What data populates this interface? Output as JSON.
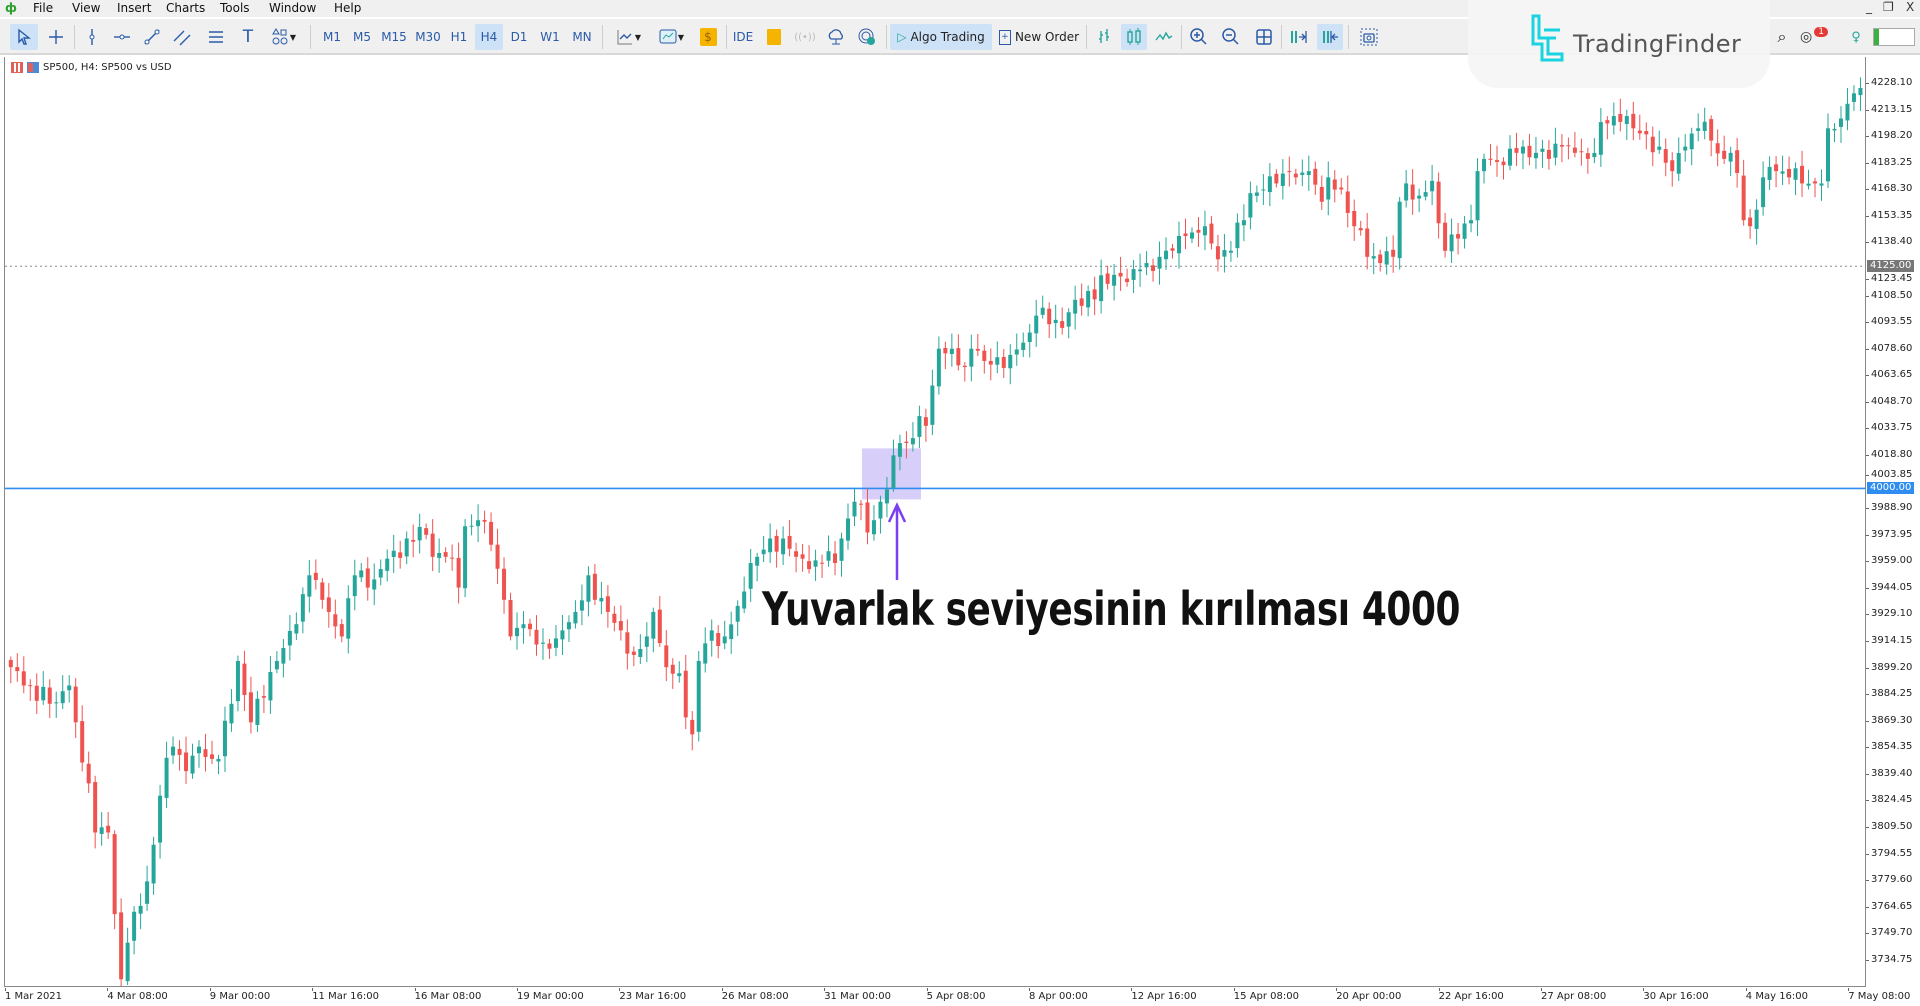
{
  "menu": {
    "items": [
      "File",
      "View",
      "Insert",
      "Charts",
      "Tools",
      "Window",
      "Help"
    ]
  },
  "window_controls": {
    "minimize": "_",
    "restore": "❐",
    "close": "X"
  },
  "toolbar": {
    "timeframes": [
      "M1",
      "M5",
      "M15",
      "M30",
      "H1",
      "H4",
      "D1",
      "W1",
      "MN"
    ],
    "active_timeframe": "H4",
    "ide_label": "IDE",
    "algo_trading_label": "Algo Trading",
    "new_order_label": "New Order",
    "notification_count": "1"
  },
  "logo": {
    "text": "TradingFinder"
  },
  "chart": {
    "header": "SP500, H4:  SP500 vs USD",
    "price_labels": [
      "4228.10",
      "4213.15",
      "4198.20",
      "4183.25",
      "4168.30",
      "4153.35",
      "4138.40",
      "4123.45",
      "4108.50",
      "4093.55",
      "4078.60",
      "4063.65",
      "4048.70",
      "4033.75",
      "4018.80",
      "4003.85",
      "3988.90",
      "3973.95",
      "3959.00",
      "3944.05",
      "3929.10",
      "3914.15",
      "3899.20",
      "3884.25",
      "3869.30",
      "3854.35",
      "3839.40",
      "3824.45",
      "3809.50",
      "3794.55",
      "3779.60",
      "3764.65",
      "3749.70",
      "3734.75"
    ],
    "time_labels": [
      "1 Mar 2021",
      "4 Mar 08:00",
      "9 Mar 00:00",
      "11 Mar 16:00",
      "16 Mar 08:00",
      "19 Mar 00:00",
      "23 Mar 16:00",
      "26 Mar 08:00",
      "31 Mar 00:00",
      "5 Apr 08:00",
      "8 Apr 00:00",
      "12 Apr 16:00",
      "15 Apr 08:00",
      "20 Apr 00:00",
      "22 Apr 16:00",
      "27 Apr 08:00",
      "30 Apr 16:00",
      "4 May 16:00",
      "7 May 08:00"
    ],
    "level_line": {
      "price": 4000.0,
      "label": "4000.00",
      "color": "#2f8cf0"
    },
    "bid_line": {
      "price": 4125.0,
      "label": "4125.00",
      "color": "#888888"
    },
    "annotation": "Yuvarlak seviyesinin kırılması 4000",
    "highlight_color": "#c9bdf7",
    "arrow_color": "#7b3ff2"
  },
  "chart_data": {
    "type": "candlestick",
    "symbol": "SP500",
    "timeframe": "H4",
    "ylim": [
      3720,
      4235
    ],
    "bull_color": "#26a69a",
    "bear_color": "#ef5350",
    "close_path": [
      [
        0,
        3899.4
      ],
      [
        2,
        3889.1
      ],
      [
        6,
        3878.8
      ],
      [
        9,
        3889.1
      ],
      [
        10,
        3868.4
      ],
      [
        12,
        3834.0
      ],
      [
        13,
        3806.4
      ],
      [
        15,
        3806.4
      ],
      [
        17,
        3723.8
      ],
      [
        18,
        3744.4
      ],
      [
        20,
        3765.1
      ],
      [
        21,
        3778.9
      ],
      [
        22,
        3799.5
      ],
      [
        23,
        3827.1
      ],
      [
        25,
        3854.7
      ],
      [
        27,
        3840.9
      ],
      [
        29,
        3854.7
      ],
      [
        31,
        3847.8
      ],
      [
        32,
        3847.8
      ],
      [
        34,
        3878.8
      ],
      [
        35,
        3902.9
      ],
      [
        37,
        3868.4
      ],
      [
        39,
        3882.2
      ],
      [
        41,
        3902.9
      ],
      [
        44,
        3923.6
      ],
      [
        46,
        3951.1
      ],
      [
        48,
        3937.3
      ],
      [
        49,
        3930.5
      ],
      [
        51,
        3916.7
      ],
      [
        53,
        3951.1
      ],
      [
        55,
        3944.2
      ],
      [
        57,
        3954.6
      ],
      [
        59,
        3964.9
      ],
      [
        61,
        3971.8
      ],
      [
        64,
        3973.9
      ],
      [
        65,
        3961.5
      ],
      [
        67,
        3961.5
      ],
      [
        69,
        3944.2
      ],
      [
        70,
        3978.7
      ],
      [
        72,
        3982.1
      ],
      [
        74,
        3968.3
      ],
      [
        76,
        3937.3
      ],
      [
        77,
        3916.7
      ],
      [
        79,
        3923.6
      ],
      [
        82,
        3913.2
      ],
      [
        83,
        3909.8
      ],
      [
        85,
        3920.1
      ],
      [
        87,
        3930.5
      ],
      [
        89,
        3951.1
      ],
      [
        90,
        3937.3
      ],
      [
        92,
        3930.5
      ],
      [
        94,
        3920.1
      ],
      [
        96,
        3906.3
      ],
      [
        98,
        3916.7
      ],
      [
        99,
        3930.5
      ],
      [
        101,
        3899.4
      ],
      [
        103,
        3896.0
      ],
      [
        105,
        3861.6
      ],
      [
        106,
        3902.9
      ],
      [
        108,
        3920.1
      ],
      [
        110,
        3916.7
      ],
      [
        112,
        3933.9
      ],
      [
        114,
        3958.0
      ],
      [
        115,
        3961.5
      ],
      [
        117,
        3971.8
      ],
      [
        119,
        3971.8
      ],
      [
        121,
        3961.5
      ],
      [
        123,
        3954.6
      ],
      [
        125,
        3958.0
      ],
      [
        127,
        3958.0
      ],
      [
        128,
        3971.8
      ],
      [
        130,
        3992.5
      ],
      [
        132,
        3975.2
      ],
      [
        133,
        3982.1
      ],
      [
        134,
        3992.5
      ],
      [
        135,
        3999.4
      ],
      [
        136,
        4018.6
      ],
      [
        137,
        4025.5
      ],
      [
        138,
        4025.5
      ],
      [
        140,
        4040.7
      ],
      [
        141,
        4035.2
      ],
      [
        142,
        4057.9
      ],
      [
        143,
        4078.6
      ],
      [
        145,
        4078.6
      ],
      [
        147,
        4068.3
      ],
      [
        148,
        4078.6
      ],
      [
        150,
        4071.7
      ],
      [
        152,
        4073.8
      ],
      [
        154,
        4075.1
      ],
      [
        156,
        4082.0
      ],
      [
        158,
        4097.2
      ],
      [
        160,
        4092.4
      ],
      [
        162,
        4090.3
      ],
      [
        164,
        4106.1
      ],
      [
        165,
        4102.7
      ],
      [
        168,
        4119.9
      ],
      [
        169,
        4115.1
      ],
      [
        171,
        4119.2
      ],
      [
        173,
        4123.4
      ],
      [
        175,
        4126.8
      ],
      [
        177,
        4130.3
      ],
      [
        179,
        4133.7
      ],
      [
        181,
        4142.0
      ],
      [
        182,
        4144.0
      ],
      [
        184,
        4147.5
      ],
      [
        186,
        4128.9
      ],
      [
        188,
        4133.7
      ],
      [
        190,
        4150.9
      ],
      [
        191,
        4166.1
      ],
      [
        193,
        4168.2
      ],
      [
        195,
        4171.6
      ],
      [
        197,
        4178.5
      ],
      [
        198,
        4175.0
      ],
      [
        200,
        4178.5
      ],
      [
        202,
        4161.3
      ],
      [
        203,
        4175.0
      ],
      [
        205,
        4168.2
      ],
      [
        207,
        4147.5
      ],
      [
        209,
        4130.3
      ],
      [
        211,
        4126.8
      ],
      [
        213,
        4130.3
      ],
      [
        214,
        4161.3
      ],
      [
        215,
        4171.6
      ],
      [
        217,
        4164.7
      ],
      [
        219,
        4173.0
      ],
      [
        221,
        4133.7
      ],
      [
        223,
        4140.6
      ],
      [
        225,
        4150.9
      ],
      [
        226,
        4178.5
      ],
      [
        227,
        4185.4
      ],
      [
        230,
        4181.9
      ],
      [
        232,
        4188.8
      ],
      [
        233,
        4192.3
      ],
      [
        235,
        4188.8
      ],
      [
        237,
        4185.4
      ],
      [
        239,
        4192.3
      ],
      [
        241,
        4188.8
      ],
      [
        243,
        4185.4
      ],
      [
        245,
        4206.1
      ],
      [
        247,
        4209.5
      ],
      [
        249,
        4209.5
      ],
      [
        250,
        4202.6
      ],
      [
        252,
        4199.2
      ],
      [
        254,
        4192.3
      ],
      [
        256,
        4178.5
      ],
      [
        258,
        4192.3
      ],
      [
        260,
        4202.6
      ],
      [
        262,
        4195.7
      ],
      [
        264,
        4185.4
      ],
      [
        265,
        4188.8
      ],
      [
        267,
        4150.9
      ],
      [
        268,
        4147.5
      ],
      [
        270,
        4175.0
      ],
      [
        272,
        4178.5
      ],
      [
        274,
        4175.0
      ],
      [
        276,
        4171.6
      ],
      [
        278,
        4171.6
      ],
      [
        279,
        4171.6
      ],
      [
        280,
        4202.6
      ],
      [
        282,
        4208.1
      ],
      [
        283,
        4216.4
      ],
      [
        285,
        4225.3
      ]
    ]
  }
}
